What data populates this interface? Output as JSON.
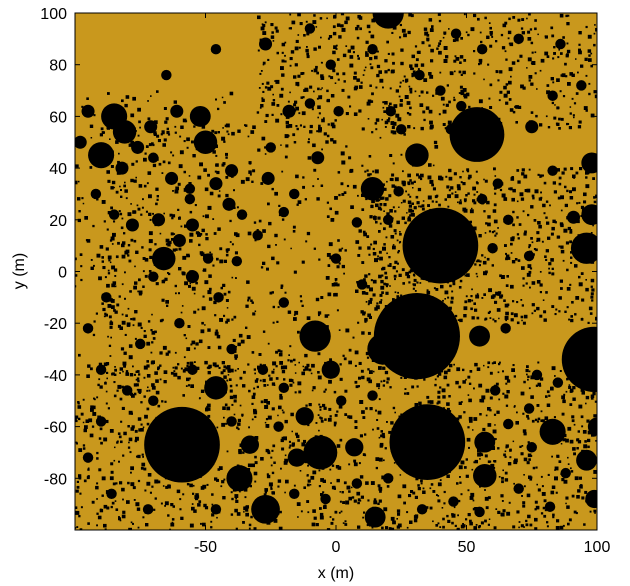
{
  "chart_data": {
    "type": "scatter",
    "title": "",
    "xlabel": "x (m)",
    "ylabel": "y (m)",
    "xlim": [
      -100,
      100
    ],
    "ylim": [
      -100,
      100
    ],
    "xticks": [
      -50,
      0,
      50,
      100
    ],
    "yticks": [
      -80,
      -60,
      -40,
      -20,
      0,
      20,
      40,
      60,
      80,
      100
    ],
    "grid": false,
    "legend": "none",
    "colors": {
      "background": "#c9981d",
      "marks": "#000000"
    },
    "large_disks": [
      {
        "x": 20,
        "y": 100,
        "r": 6
      },
      {
        "x": 54,
        "y": 53,
        "r": 10.5
      },
      {
        "x": 40,
        "y": 10,
        "r": 14.5
      },
      {
        "x": 31,
        "y": -25,
        "r": 16.5
      },
      {
        "x": 18,
        "y": -30,
        "r": 6
      },
      {
        "x": 35,
        "y": -66,
        "r": 14.5
      },
      {
        "x": 99,
        "y": -34,
        "r": 12.5
      },
      {
        "x": -59,
        "y": -67,
        "r": 14.5
      },
      {
        "x": 96,
        "y": 9,
        "r": 6
      },
      {
        "x": 98,
        "y": 22,
        "r": 4
      },
      {
        "x": 98,
        "y": 42,
        "r": 4
      },
      {
        "x": -8,
        "y": -25,
        "r": 6
      },
      {
        "x": -6,
        "y": -70,
        "r": 6.5
      },
      {
        "x": -27,
        "y": -92,
        "r": 5.5
      },
      {
        "x": -37,
        "y": -80,
        "r": 5
      },
      {
        "x": 83,
        "y": -62,
        "r": 5
      },
      {
        "x": 57,
        "y": -66,
        "r": 4
      },
      {
        "x": 57,
        "y": -79,
        "r": 4.5
      },
      {
        "x": 96,
        "y": -73,
        "r": 4
      },
      {
        "x": 31,
        "y": 45,
        "r": 4.5
      },
      {
        "x": 14,
        "y": 32,
        "r": 4.5
      },
      {
        "x": -90,
        "y": 45,
        "r": 5
      },
      {
        "x": -85,
        "y": 60,
        "r": 5
      },
      {
        "x": -81,
        "y": 54,
        "r": 4.5
      },
      {
        "x": -52,
        "y": 60,
        "r": 4
      },
      {
        "x": -50,
        "y": 50,
        "r": 4.5
      },
      {
        "x": -66,
        "y": 5,
        "r": 4.5
      },
      {
        "x": -46,
        "y": -45,
        "r": 4.5
      },
      {
        "x": -12,
        "y": -56,
        "r": 3.5
      },
      {
        "x": -2,
        "y": -38,
        "r": 3.5
      },
      {
        "x": 55,
        "y": -25,
        "r": 4
      },
      {
        "x": -33,
        "y": -67,
        "r": 3.5
      },
      {
        "x": 7,
        "y": -68,
        "r": 3.5
      },
      {
        "x": -15,
        "y": -72,
        "r": 3.5
      },
      {
        "x": 15,
        "y": -95,
        "r": 4
      },
      {
        "x": 100,
        "y": -60,
        "r": 3.5
      },
      {
        "x": 99,
        "y": -88,
        "r": 3.5
      }
    ],
    "medium_disks": [
      {
        "x": -95,
        "y": 62,
        "r": 2.5
      },
      {
        "x": -98,
        "y": 50,
        "r": 2.5
      },
      {
        "x": -76,
        "y": 48,
        "r": 2.5
      },
      {
        "x": -71,
        "y": 56,
        "r": 2.5
      },
      {
        "x": -61,
        "y": 62,
        "r": 2.5
      },
      {
        "x": -70,
        "y": 44,
        "r": 2
      },
      {
        "x": -82,
        "y": 40,
        "r": 2.5
      },
      {
        "x": -78,
        "y": 18,
        "r": 2.5
      },
      {
        "x": -68,
        "y": 20,
        "r": 2.5
      },
      {
        "x": -63,
        "y": 36,
        "r": 2.5
      },
      {
        "x": -56,
        "y": 32,
        "r": 2
      },
      {
        "x": -46,
        "y": 34,
        "r": 2.5
      },
      {
        "x": -40,
        "y": 39,
        "r": 2.5
      },
      {
        "x": -41,
        "y": 26,
        "r": 2.5
      },
      {
        "x": -36,
        "y": 22,
        "r": 2
      },
      {
        "x": -30,
        "y": 14,
        "r": 2
      },
      {
        "x": -55,
        "y": 18,
        "r": 2.5
      },
      {
        "x": -60,
        "y": 12,
        "r": 2.5
      },
      {
        "x": -70,
        "y": -2,
        "r": 2
      },
      {
        "x": -55,
        "y": -2,
        "r": 2.5
      },
      {
        "x": -45,
        "y": -10,
        "r": 2
      },
      {
        "x": -49,
        "y": 5,
        "r": 2
      },
      {
        "x": -56,
        "y": 28,
        "r": 2
      },
      {
        "x": -38,
        "y": 4,
        "r": 2
      },
      {
        "x": -25,
        "y": 48,
        "r": 2
      },
      {
        "x": -18,
        "y": 62,
        "r": 2.5
      },
      {
        "x": -10,
        "y": 65,
        "r": 2
      },
      {
        "x": -7,
        "y": 44,
        "r": 2.5
      },
      {
        "x": -16,
        "y": 30,
        "r": 2
      },
      {
        "x": 1,
        "y": 62,
        "r": 2
      },
      {
        "x": -2,
        "y": 80,
        "r": 2
      },
      {
        "x": -27,
        "y": 88,
        "r": 2.5
      },
      {
        "x": 14,
        "y": 86,
        "r": 2
      },
      {
        "x": 21,
        "y": 62,
        "r": 2
      },
      {
        "x": 25,
        "y": 55,
        "r": 2
      },
      {
        "x": 44,
        "y": 55,
        "r": 2
      },
      {
        "x": 75,
        "y": 56,
        "r": 2.5
      },
      {
        "x": 83,
        "y": 39,
        "r": 2
      },
      {
        "x": 83,
        "y": 68,
        "r": 2
      },
      {
        "x": 91,
        "y": 21,
        "r": 2.5
      },
      {
        "x": 66,
        "y": 20,
        "r": 2
      },
      {
        "x": 60,
        "y": 9,
        "r": 2
      },
      {
        "x": 74,
        "y": 6,
        "r": 2
      },
      {
        "x": 20,
        "y": 20,
        "r": 2
      },
      {
        "x": 24,
        "y": 31,
        "r": 2
      },
      {
        "x": 8,
        "y": 19,
        "r": 2
      },
      {
        "x": -26,
        "y": 36,
        "r": 2.5
      },
      {
        "x": -20,
        "y": 23,
        "r": 2
      },
      {
        "x": 65,
        "y": -22,
        "r": 2
      },
      {
        "x": 77,
        "y": -40,
        "r": 2
      },
      {
        "x": 74,
        "y": -53,
        "r": 2
      },
      {
        "x": 66,
        "y": -59,
        "r": 2
      },
      {
        "x": 85,
        "y": -43,
        "r": 2
      },
      {
        "x": 61,
        "y": -46,
        "r": 2
      },
      {
        "x": 70,
        "y": -84,
        "r": 2
      },
      {
        "x": 82,
        "y": -91,
        "r": 2
      },
      {
        "x": 88,
        "y": -78,
        "r": 2
      },
      {
        "x": 75,
        "y": -68,
        "r": 2
      },
      {
        "x": 45,
        "y": -89,
        "r": 2
      },
      {
        "x": 33,
        "y": -92,
        "r": 2
      },
      {
        "x": 55,
        "y": -93,
        "r": 2
      },
      {
        "x": 2,
        "y": -50,
        "r": 2
      },
      {
        "x": 14,
        "y": -48,
        "r": 2
      },
      {
        "x": -20,
        "y": -45,
        "r": 2
      },
      {
        "x": -28,
        "y": -38,
        "r": 2
      },
      {
        "x": -40,
        "y": -30,
        "r": 2
      },
      {
        "x": -55,
        "y": -38,
        "r": 2
      },
      {
        "x": -70,
        "y": -50,
        "r": 2
      },
      {
        "x": -80,
        "y": -46,
        "r": 2
      },
      {
        "x": -90,
        "y": -58,
        "r": 2
      },
      {
        "x": -95,
        "y": -72,
        "r": 2
      },
      {
        "x": -86,
        "y": -86,
        "r": 2
      },
      {
        "x": -72,
        "y": -92,
        "r": 2
      },
      {
        "x": -46,
        "y": -92,
        "r": 2
      },
      {
        "x": -40,
        "y": -58,
        "r": 2
      },
      {
        "x": -22,
        "y": -60,
        "r": 2
      },
      {
        "x": -16,
        "y": -86,
        "r": 2
      },
      {
        "x": -4,
        "y": -88,
        "r": 2
      },
      {
        "x": 8,
        "y": -82,
        "r": 2
      },
      {
        "x": 20,
        "y": -80,
        "r": 2
      },
      {
        "x": -60,
        "y": -20,
        "r": 2
      },
      {
        "x": -75,
        "y": -28,
        "r": 2
      },
      {
        "x": -90,
        "y": -38,
        "r": 2
      },
      {
        "x": -20,
        "y": -12,
        "r": 2
      },
      {
        "x": 0,
        "y": 5,
        "r": 2
      },
      {
        "x": 10,
        "y": -5,
        "r": 2
      },
      {
        "x": 62,
        "y": 34,
        "r": 2
      },
      {
        "x": 56,
        "y": 28,
        "r": 2
      },
      {
        "x": 40,
        "y": 70,
        "r": 2
      },
      {
        "x": 48,
        "y": 64,
        "r": 2
      },
      {
        "x": 70,
        "y": 90,
        "r": 2
      },
      {
        "x": 56,
        "y": 86,
        "r": 2
      },
      {
        "x": 46,
        "y": 92,
        "r": 2
      },
      {
        "x": 32,
        "y": 76,
        "r": 2
      },
      {
        "x": 86,
        "y": 88,
        "r": 2
      },
      {
        "x": 94,
        "y": 72,
        "r": 2
      },
      {
        "x": -10,
        "y": 94,
        "r": 2
      },
      {
        "x": -46,
        "y": 86,
        "r": 2
      },
      {
        "x": -65,
        "y": 76,
        "r": 2
      },
      {
        "x": -85,
        "y": 22,
        "r": 2
      },
      {
        "x": -92,
        "y": 30,
        "r": 2
      },
      {
        "x": -88,
        "y": -10,
        "r": 2
      },
      {
        "x": -95,
        "y": -22,
        "r": 2
      }
    ],
    "speckle_regions": [
      {
        "x": [
          -100,
          100
        ],
        "y": [
          -100,
          -35
        ],
        "count": 1400
      },
      {
        "x": [
          -90,
          40
        ],
        "y": [
          -40,
          60
        ],
        "count": 700
      },
      {
        "x": [
          10,
          100
        ],
        "y": [
          -20,
          40
        ],
        "count": 700
      },
      {
        "x": [
          -30,
          100
        ],
        "y": [
          55,
          100
        ],
        "count": 600
      },
      {
        "x": [
          -100,
          -40
        ],
        "y": [
          -40,
          70
        ],
        "count": 250
      }
    ]
  }
}
